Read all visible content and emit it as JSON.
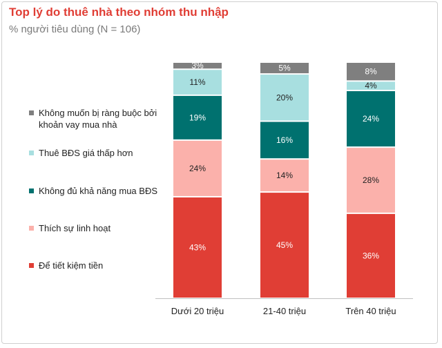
{
  "title": "Top lý do thuê nhà theo nhóm thu nhập",
  "subtitle": "% người tiêu dùng (N = 106)",
  "chart_data": {
    "type": "bar",
    "stacked": true,
    "categories": [
      "Dưới 20 triệu",
      "21-40 triệu",
      "Trên 40 triệu"
    ],
    "series": [
      {
        "name": "Để tiết kiệm tiền",
        "color": "#e03e35",
        "label_color": "#ffffff",
        "values": [
          43,
          45,
          36
        ],
        "labels": [
          "43%",
          "45%",
          "36%"
        ]
      },
      {
        "name": "Thích sự linh hoạt",
        "color": "#fbb1ab",
        "label_color": "#222222",
        "values": [
          24,
          14,
          28
        ],
        "labels": [
          "24%",
          "14%",
          "28%"
        ]
      },
      {
        "name": "Không đủ khả năng mua BĐS",
        "color": "#00716f",
        "label_color": "#ffffff",
        "values": [
          19,
          16,
          24
        ],
        "labels": [
          "19%",
          "16%",
          "24%"
        ]
      },
      {
        "name": "Thuê BĐS giá thấp hơn",
        "color": "#a8dfe0",
        "label_color": "#222222",
        "values": [
          11,
          20,
          4
        ],
        "labels": [
          "11%",
          "20%",
          "4%"
        ]
      },
      {
        "name": "Không muốn bị ràng buộc bởi khoản vay mua nhà",
        "color": "#7f7f7f",
        "label_color": "#ffffff",
        "values": [
          3,
          5,
          8
        ],
        "labels": [
          "3%",
          "5%",
          "8%"
        ]
      }
    ],
    "ylim": [
      0,
      100
    ],
    "grid": false,
    "legend_placement": "left"
  }
}
